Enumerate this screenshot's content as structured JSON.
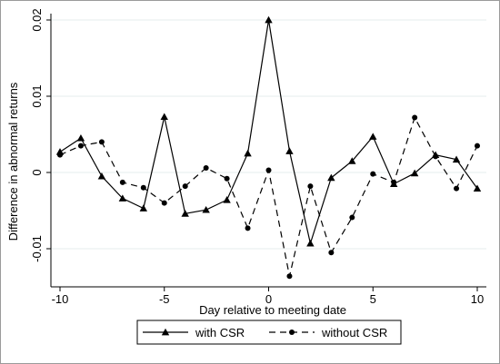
{
  "chart_data": {
    "type": "line",
    "title": "",
    "xlabel": "Day relative to meeting date",
    "ylabel": "Difference in abnormal returns",
    "xlim": [
      -10,
      10
    ],
    "ylim": [
      -0.015,
      0.021
    ],
    "x_ticks": [
      -10,
      -5,
      0,
      5,
      10
    ],
    "x_tick_labels": [
      "-10",
      "-5",
      "0",
      "5",
      "10"
    ],
    "y_ticks": [
      -0.01,
      0,
      0.01,
      0.02
    ],
    "y_tick_labels": [
      "-0.01",
      "0",
      "0.01",
      "0.02"
    ],
    "grid": "horizontal",
    "legend_position": "bottom",
    "x": [
      -10,
      -9,
      -8,
      -7,
      -6,
      -5,
      -4,
      -3,
      -2,
      -1,
      0,
      1,
      2,
      3,
      4,
      5,
      6,
      7,
      8,
      9,
      10
    ],
    "series": [
      {
        "name": "with CSR",
        "line_style": "solid",
        "marker": "triangle",
        "color": "#000000",
        "values": [
          0.0027,
          0.0045,
          -0.0005,
          -0.0034,
          -0.0047,
          0.0073,
          -0.0054,
          -0.0049,
          -0.0036,
          0.0025,
          0.02,
          0.0028,
          -0.0093,
          -0.0007,
          0.0015,
          0.0047,
          -0.0015,
          -0.0001,
          0.0023,
          0.0017,
          -0.0021
        ]
      },
      {
        "name": "without CSR",
        "line_style": "dashed",
        "marker": "circle",
        "color": "#000000",
        "values": [
          0.0023,
          0.0035,
          0.004,
          -0.0013,
          -0.002,
          -0.004,
          -0.0018,
          0.0006,
          -0.0008,
          -0.0073,
          0.0003,
          -0.0136,
          -0.0018,
          -0.0105,
          -0.0059,
          -0.0002,
          -0.0013,
          0.0072,
          0.0021,
          -0.0021,
          0.0035
        ]
      }
    ]
  }
}
